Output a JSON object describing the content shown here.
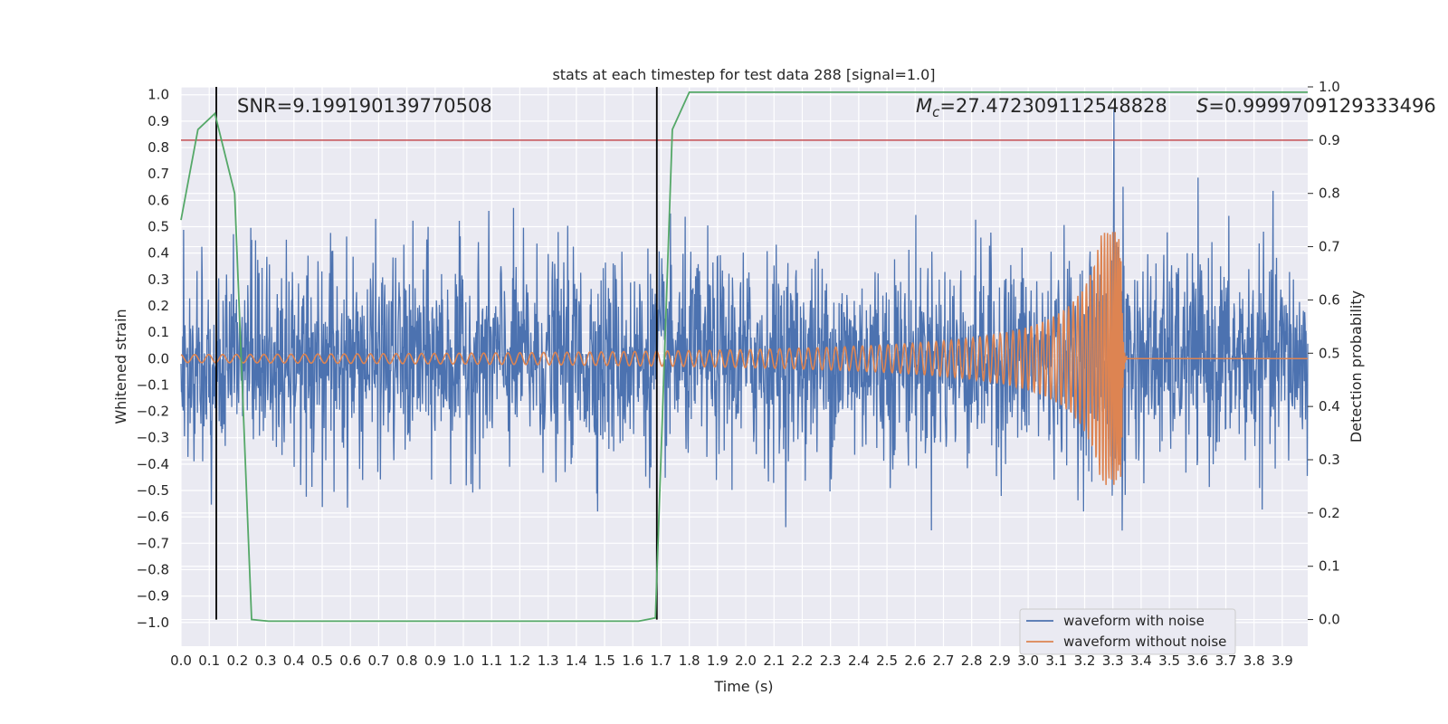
{
  "chart_data": {
    "type": "line",
    "title": "stats at each timestep for test data 288 [signal=1.0]",
    "xlabel": "Time (s)",
    "ylabel": "Whitened strain",
    "y2label": "Detection probability",
    "xlim": [
      0.0,
      3.99
    ],
    "ylim": [
      -1.09,
      1.03
    ],
    "y2lim": [
      -0.05,
      1.0
    ],
    "grid": true,
    "legend_placement": "lower right",
    "x_ticks": [
      "0.0",
      "0.1",
      "0.2",
      "0.3",
      "0.4",
      "0.5",
      "0.6",
      "0.7",
      "0.8",
      "0.9",
      "1.0",
      "1.1",
      "1.2",
      "1.3",
      "1.4",
      "1.5",
      "1.6",
      "1.7",
      "1.8",
      "1.9",
      "2.0",
      "2.1",
      "2.2",
      "2.3",
      "2.4",
      "2.5",
      "2.6",
      "2.7",
      "2.8",
      "2.9",
      "3.0",
      "3.1",
      "3.2",
      "3.3",
      "3.4",
      "3.5",
      "3.6",
      "3.7",
      "3.8",
      "3.9"
    ],
    "y_ticks": [
      "1.0",
      "0.9",
      "0.8",
      "0.7",
      "0.6",
      "0.5",
      "0.4",
      "0.3",
      "0.2",
      "0.1",
      "0.0",
      "−0.1",
      "−0.2",
      "−0.3",
      "−0.4",
      "−0.5",
      "−0.6",
      "−0.7",
      "−0.8",
      "−0.9",
      "−1.0"
    ],
    "y2_ticks": [
      "1.0",
      "0.9",
      "0.8",
      "0.7",
      "0.6",
      "0.5",
      "0.4",
      "0.3",
      "0.2",
      "0.1",
      "0.0"
    ],
    "annotations": {
      "snr": "SNR=9.199190139770508",
      "mc": "=27.472309112548828",
      "mc_symbol": "M",
      "mc_sub": "c",
      "s_symbol": "S",
      "s": "=0.9999709129333496"
    },
    "series": [
      {
        "name": "waveform with noise",
        "color": "#4c72b0",
        "description_kind": "noise",
        "amplitude_typical": 0.35,
        "amplitude_max": 0.99
      },
      {
        "name": "waveform without noise",
        "color": "#dd8452",
        "kind": "chirp",
        "merger_time": 3.33,
        "f_start_hz": 20,
        "f_merger_hz": 250,
        "amp_start": 0.015,
        "amp_merger": 0.48,
        "post_merger_value": 0.0
      }
    ],
    "probability_series": {
      "color": "#55a868",
      "points": [
        [
          0.0,
          0.75
        ],
        [
          0.06,
          0.92
        ],
        [
          0.12,
          0.95
        ],
        [
          0.19,
          0.8
        ],
        [
          0.25,
          0.0
        ],
        [
          0.31,
          -0.003
        ],
        [
          0.6,
          -0.003
        ],
        [
          1.0,
          -0.003
        ],
        [
          1.4,
          -0.003
        ],
        [
          1.62,
          -0.003
        ],
        [
          1.68,
          0.003
        ],
        [
          1.74,
          0.92
        ],
        [
          1.8,
          0.99
        ],
        [
          2.5,
          0.99
        ],
        [
          3.2,
          0.99
        ],
        [
          3.9,
          0.99
        ],
        [
          3.99,
          0.99
        ]
      ]
    },
    "threshold": {
      "value": 0.9,
      "axis": "y2",
      "color": "#c44e52"
    },
    "vertical_lines": [
      {
        "x": 0.125,
        "color": "#000000"
      },
      {
        "x": 1.685,
        "color": "#000000"
      }
    ]
  },
  "legend": {
    "items": [
      {
        "label": "waveform with noise",
        "color": "#4c72b0"
      },
      {
        "label": "waveform without noise",
        "color": "#dd8452"
      }
    ]
  }
}
